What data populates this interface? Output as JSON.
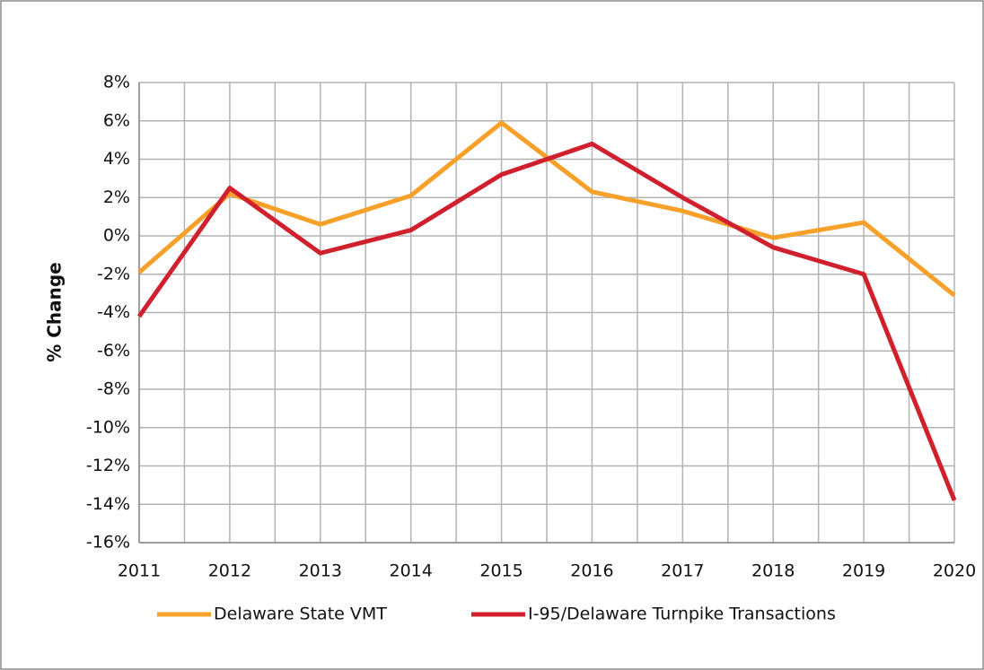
{
  "chart_data": {
    "type": "line",
    "y_label": "% Change",
    "categories": [
      "2011",
      "2012",
      "2013",
      "2014",
      "2015",
      "2016",
      "2017",
      "2018",
      "2019",
      "2020"
    ],
    "series": [
      {
        "name": "Delaware State VMT",
        "color": "#f7a02a",
        "values": [
          -1.9,
          2.2,
          0.6,
          2.1,
          5.9,
          2.3,
          1.3,
          -0.1,
          0.7,
          -3.1
        ]
      },
      {
        "name": "I-95/Delaware Turnpike Transactions",
        "color": "#d0202e",
        "values": [
          -4.2,
          2.5,
          -0.9,
          0.3,
          3.2,
          4.8,
          2.0,
          -0.6,
          -2.0,
          -13.8
        ]
      }
    ],
    "ylim": [
      -16,
      8
    ],
    "yticks": [
      {
        "value": -16,
        "label": "-16%"
      },
      {
        "value": -14,
        "label": "-14%"
      },
      {
        "value": -12,
        "label": "-12%"
      },
      {
        "value": -10,
        "label": "-10%"
      },
      {
        "value": -8,
        "label": "-8%"
      },
      {
        "value": -6,
        "label": "-6%"
      },
      {
        "value": -4,
        "label": "-4%"
      },
      {
        "value": -2,
        "label": "-2%"
      },
      {
        "value": 0,
        "label": "0%"
      },
      {
        "value": 2,
        "label": "2%"
      },
      {
        "value": 4,
        "label": "4%"
      },
      {
        "value": 6,
        "label": "6%"
      },
      {
        "value": 8,
        "label": "8%"
      }
    ],
    "grid": true,
    "legend": "bottom"
  }
}
